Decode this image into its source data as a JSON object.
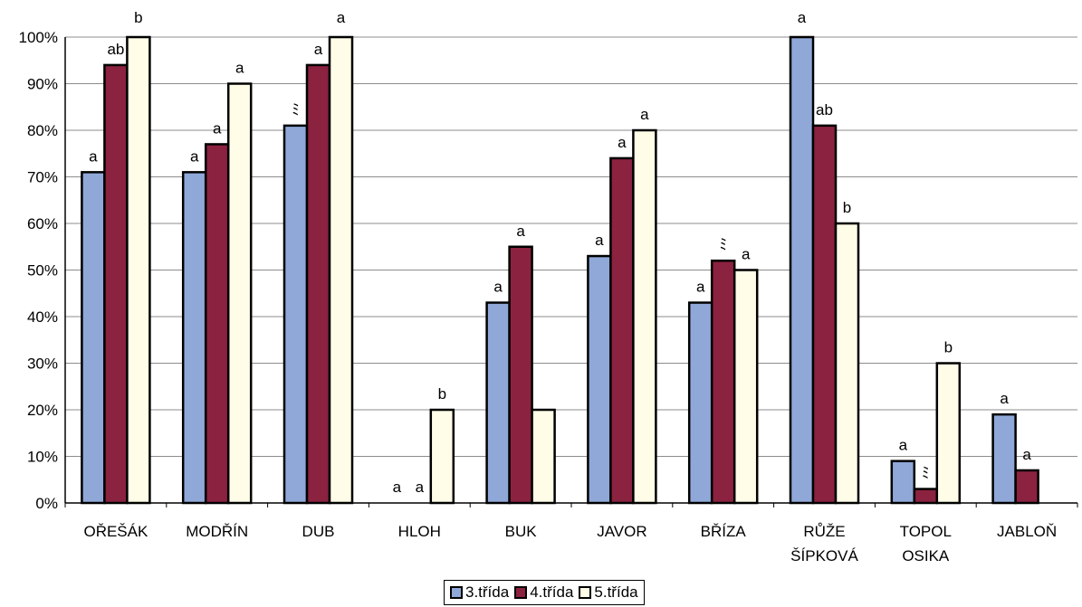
{
  "chart_data": {
    "type": "bar",
    "title": "",
    "xlabel": "",
    "ylabel": "",
    "ylim": [
      0,
      100
    ],
    "yticks": [
      "0%",
      "10%",
      "20%",
      "30%",
      "40%",
      "50%",
      "60%",
      "70%",
      "80%",
      "90%",
      "100%"
    ],
    "grid": true,
    "legend_position": "bottom",
    "categories": [
      [
        "OŘEŠÁK"
      ],
      [
        "MODŘÍN"
      ],
      [
        "DUB"
      ],
      [
        "HLOH"
      ],
      [
        "BUK"
      ],
      [
        "JAVOR"
      ],
      [
        "BŘÍZA"
      ],
      [
        "RŮŽE",
        "ŠÍPKOVÁ"
      ],
      [
        "TOPOL",
        "OSIKA"
      ],
      [
        "JABLOŇ"
      ]
    ],
    "series": [
      {
        "name": "3.třída",
        "color": "#8fa8d8",
        "values": [
          71,
          71,
          81,
          0,
          43,
          53,
          43,
          100,
          9,
          19
        ],
        "labels": [
          "a",
          "a",
          "ﾐ",
          "a",
          "a",
          "a",
          "a",
          "a",
          "a",
          "a"
        ]
      },
      {
        "name": "4.třída",
        "color": "#8b2240",
        "values": [
          94,
          77,
          94,
          0,
          55,
          74,
          52,
          81,
          3,
          7
        ],
        "labels": [
          "ab",
          "a",
          "a",
          "a",
          "a",
          "a",
          "ﾐ",
          "ab",
          "ﾐ",
          "a"
        ]
      },
      {
        "name": "5.třída",
        "color": "#fffde8",
        "values": [
          100,
          90,
          100,
          20,
          20,
          80,
          50,
          60,
          30,
          0
        ],
        "labels": [
          "b",
          "a",
          "a",
          "b",
          "",
          "a",
          "a",
          "b",
          "b",
          ""
        ]
      }
    ]
  }
}
